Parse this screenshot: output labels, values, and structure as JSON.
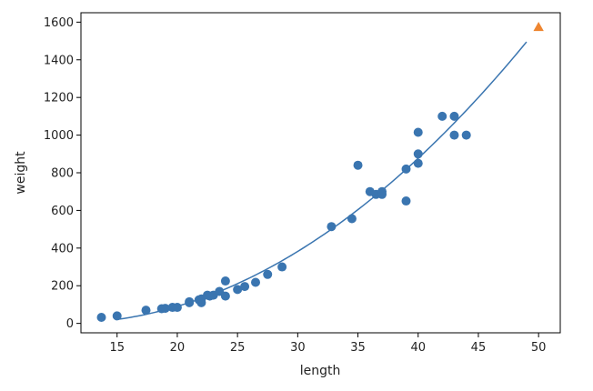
{
  "chart_data": {
    "type": "scatter",
    "title": "",
    "xlabel": "length",
    "ylabel": "weight",
    "xlim": [
      12,
      51.8
    ],
    "ylim": [
      -50,
      1650
    ],
    "xticks": [
      15,
      20,
      25,
      30,
      35,
      40,
      45,
      50
    ],
    "yticks": [
      0,
      200,
      400,
      600,
      800,
      1000,
      1200,
      1400,
      1600
    ],
    "grid": false,
    "legend": "none",
    "series": [
      {
        "kind": "scatter",
        "marker": "circle",
        "color": "#3a75b0",
        "points": [
          [
            13.7,
            32
          ],
          [
            15.0,
            40
          ],
          [
            17.4,
            70
          ],
          [
            18.7,
            78
          ],
          [
            19.0,
            80
          ],
          [
            19.6,
            85
          ],
          [
            20.0,
            85
          ],
          [
            21.0,
            110
          ],
          [
            21.0,
            115
          ],
          [
            21.8,
            125
          ],
          [
            22.0,
            110
          ],
          [
            22.0,
            130
          ],
          [
            22.5,
            150
          ],
          [
            22.7,
            145
          ],
          [
            23.0,
            150
          ],
          [
            23.5,
            170
          ],
          [
            24.0,
            145
          ],
          [
            24.0,
            225
          ],
          [
            25.0,
            180
          ],
          [
            25.6,
            196
          ],
          [
            26.5,
            218
          ],
          [
            27.5,
            260
          ],
          [
            28.7,
            300
          ],
          [
            32.8,
            514
          ],
          [
            34.5,
            556
          ],
          [
            35.0,
            840
          ],
          [
            36.0,
            700
          ],
          [
            36.5,
            685
          ],
          [
            37.0,
            685
          ],
          [
            37.0,
            700
          ],
          [
            39.0,
            650
          ],
          [
            39.0,
            820
          ],
          [
            40.0,
            850
          ],
          [
            40.0,
            900
          ],
          [
            40.0,
            1015
          ],
          [
            42.0,
            1100
          ],
          [
            43.0,
            1000
          ],
          [
            43.0,
            1100
          ],
          [
            44.0,
            1000
          ]
        ]
      },
      {
        "kind": "line",
        "color": "#3a75b0",
        "curve": {
          "from": 15,
          "to": 49,
          "a": 1.01433211,
          "b": -21.55792498,
          "c": 116.0502107827827
        }
      },
      {
        "kind": "scatter",
        "marker": "triangle",
        "color": "#ee8530",
        "points": [
          [
            50,
            1573
          ]
        ]
      }
    ]
  }
}
